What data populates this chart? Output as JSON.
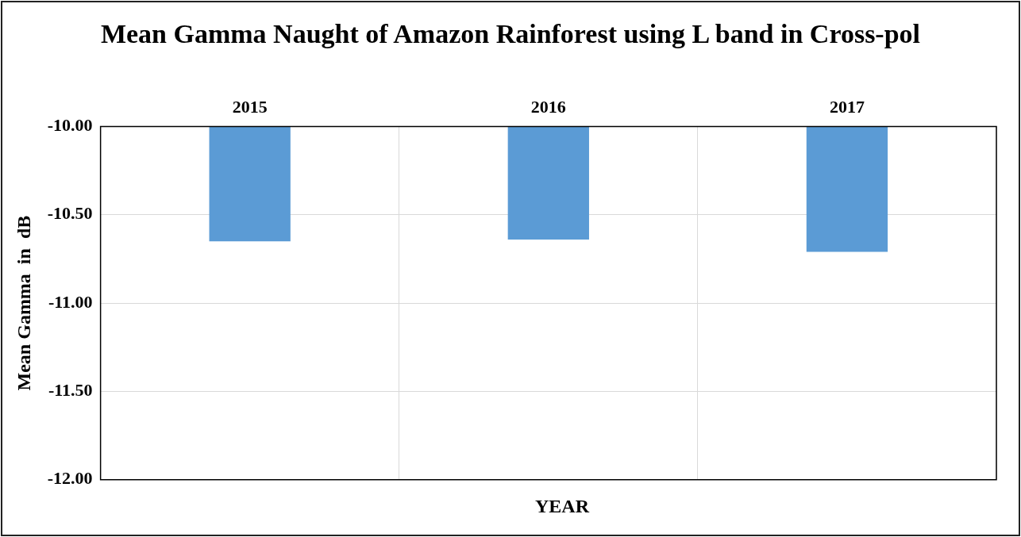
{
  "chart_data": {
    "type": "bar",
    "title": "Mean Gamma Naught of Amazon Rainforest using L band in Cross-pol",
    "xlabel": "YEAR",
    "ylabel": "Mean Gamma  in  dB",
    "categories": [
      "2015",
      "2016",
      "2017"
    ],
    "series": [
      {
        "color": "#5b9bd5",
        "values": [
          -10.65,
          -10.64,
          -10.71
        ]
      }
    ],
    "ylim": [
      -12,
      -10
    ],
    "yticks": [
      {
        "value": -12,
        "label": "-12.00"
      },
      {
        "value": -11.5,
        "label": "-11.50"
      },
      {
        "value": -11,
        "label": "-11.00"
      },
      {
        "value": -10.5,
        "label": "-10.50"
      },
      {
        "value": -10,
        "label": "-10.00"
      }
    ],
    "grid": true,
    "legend": false
  }
}
